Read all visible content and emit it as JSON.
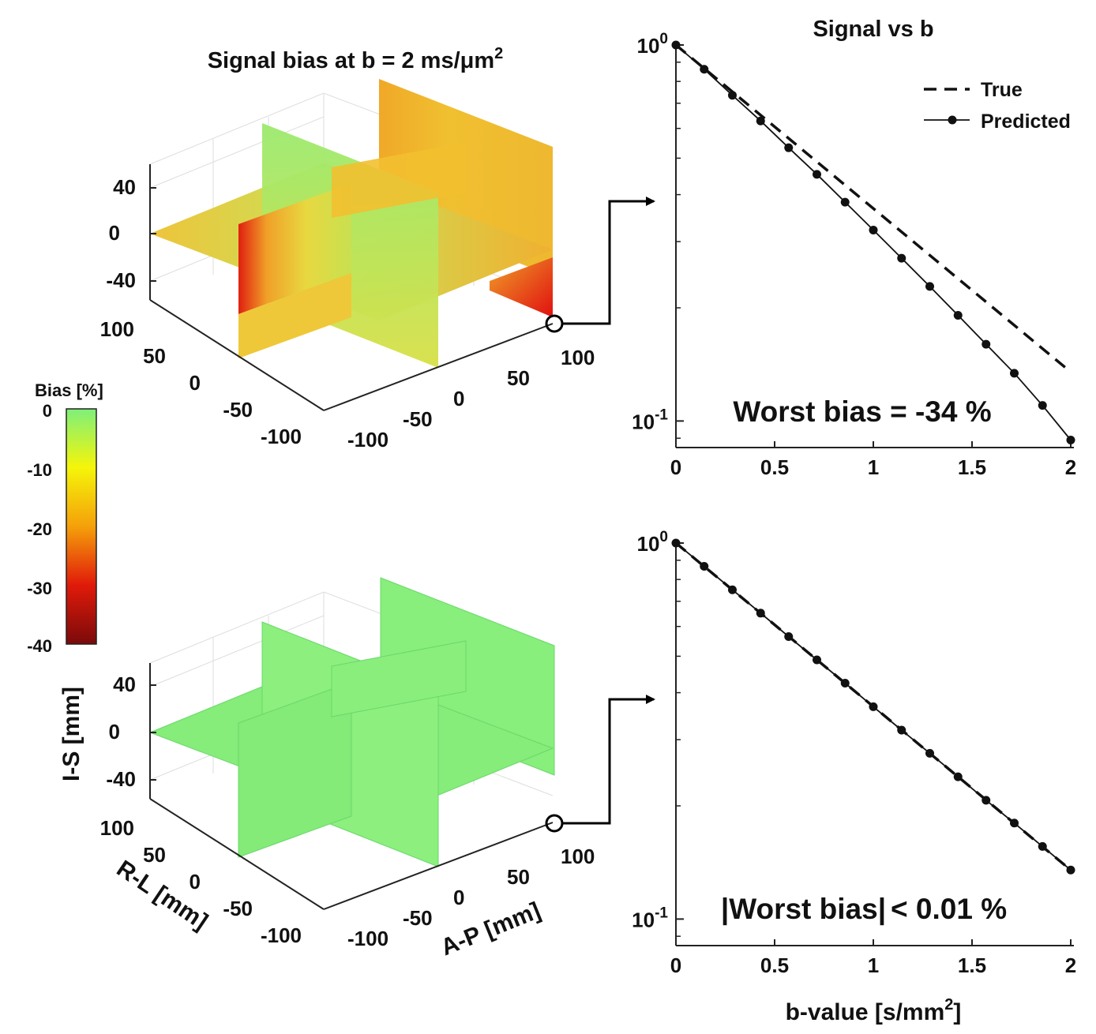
{
  "colorbar": {
    "label": "Bias [%]",
    "ticks": [
      "0",
      "-10",
      "-20",
      "-30",
      "-40"
    ],
    "colors": [
      "#7ef07a",
      "#f5f50a",
      "#f5a00a",
      "#e01a0a",
      "#7a0a0a"
    ]
  },
  "slices": {
    "top": {
      "title": "Signal bias at b = 2 ms/μm",
      "title_sup": "2",
      "is_ticks": [
        "40",
        "0",
        "-40"
      ],
      "rl_ticks": [
        "100",
        "50",
        "0",
        "-50",
        "-100"
      ],
      "ap_ticks": [
        "-100",
        "-50",
        "0",
        "50",
        "100"
      ]
    },
    "bottom": {
      "is_label": "I-S [mm]",
      "rl_label": "R-L [mm]",
      "ap_label": "A-P [mm]",
      "is_ticks": [
        "40",
        "0",
        "-40"
      ],
      "rl_ticks": [
        "100",
        "50",
        "0",
        "-50",
        "-100"
      ],
      "ap_ticks": [
        "-100",
        "-50",
        "0",
        "50",
        "100"
      ]
    }
  },
  "chart_data": [
    {
      "type": "line",
      "title": "Signal vs b",
      "x_ticks": [
        "0",
        "0.5",
        "1",
        "1.5",
        "2"
      ],
      "y_scale": "log",
      "ylim": [
        0.085,
        1.0
      ],
      "y_ticks": [
        {
          "base": "10",
          "exp": "0"
        },
        {
          "base": "10",
          "exp": "-1"
        }
      ],
      "legend": "top-right",
      "annotation": "Worst bias = -34 %",
      "series": [
        {
          "name": "True",
          "style": "dashed",
          "x": [
            0,
            2
          ],
          "y": [
            1.0,
            0.135
          ]
        },
        {
          "name": "Predicted",
          "style": "solid-markers",
          "x": [
            0,
            0.143,
            0.286,
            0.429,
            0.571,
            0.714,
            0.857,
            1.0,
            1.143,
            1.286,
            1.429,
            1.571,
            1.714,
            1.857,
            2.0
          ],
          "y": [
            1.0,
            0.862,
            0.735,
            0.628,
            0.533,
            0.453,
            0.382,
            0.322,
            0.271,
            0.228,
            0.191,
            0.16,
            0.134,
            0.11,
            0.089
          ]
        }
      ]
    },
    {
      "type": "line",
      "x_ticks": [
        "0",
        "0.5",
        "1",
        "1.5",
        "2"
      ],
      "y_scale": "log",
      "ylim": [
        0.085,
        1.0
      ],
      "y_ticks": [
        {
          "base": "10",
          "exp": "0"
        },
        {
          "base": "10",
          "exp": "-1"
        }
      ],
      "xlabel": "b-value [s/mm",
      "xlabel_sup": "2",
      "xlabel_end": "]",
      "annotation_bar": "|",
      "annotation": "Worst bias",
      "annotation_end": "< 0.01 %",
      "series": [
        {
          "name": "True",
          "style": "dashed",
          "x": [
            0,
            2
          ],
          "y": [
            1.0,
            0.135
          ]
        },
        {
          "name": "Predicted",
          "style": "solid-markers",
          "x": [
            0,
            0.143,
            0.286,
            0.429,
            0.571,
            0.714,
            0.857,
            1.0,
            1.143,
            1.286,
            1.429,
            1.571,
            1.714,
            1.857,
            2.0
          ],
          "y": [
            1.0,
            0.867,
            0.751,
            0.651,
            0.564,
            0.489,
            0.424,
            0.367,
            0.318,
            0.276,
            0.239,
            0.207,
            0.18,
            0.156,
            0.135
          ]
        }
      ]
    }
  ]
}
